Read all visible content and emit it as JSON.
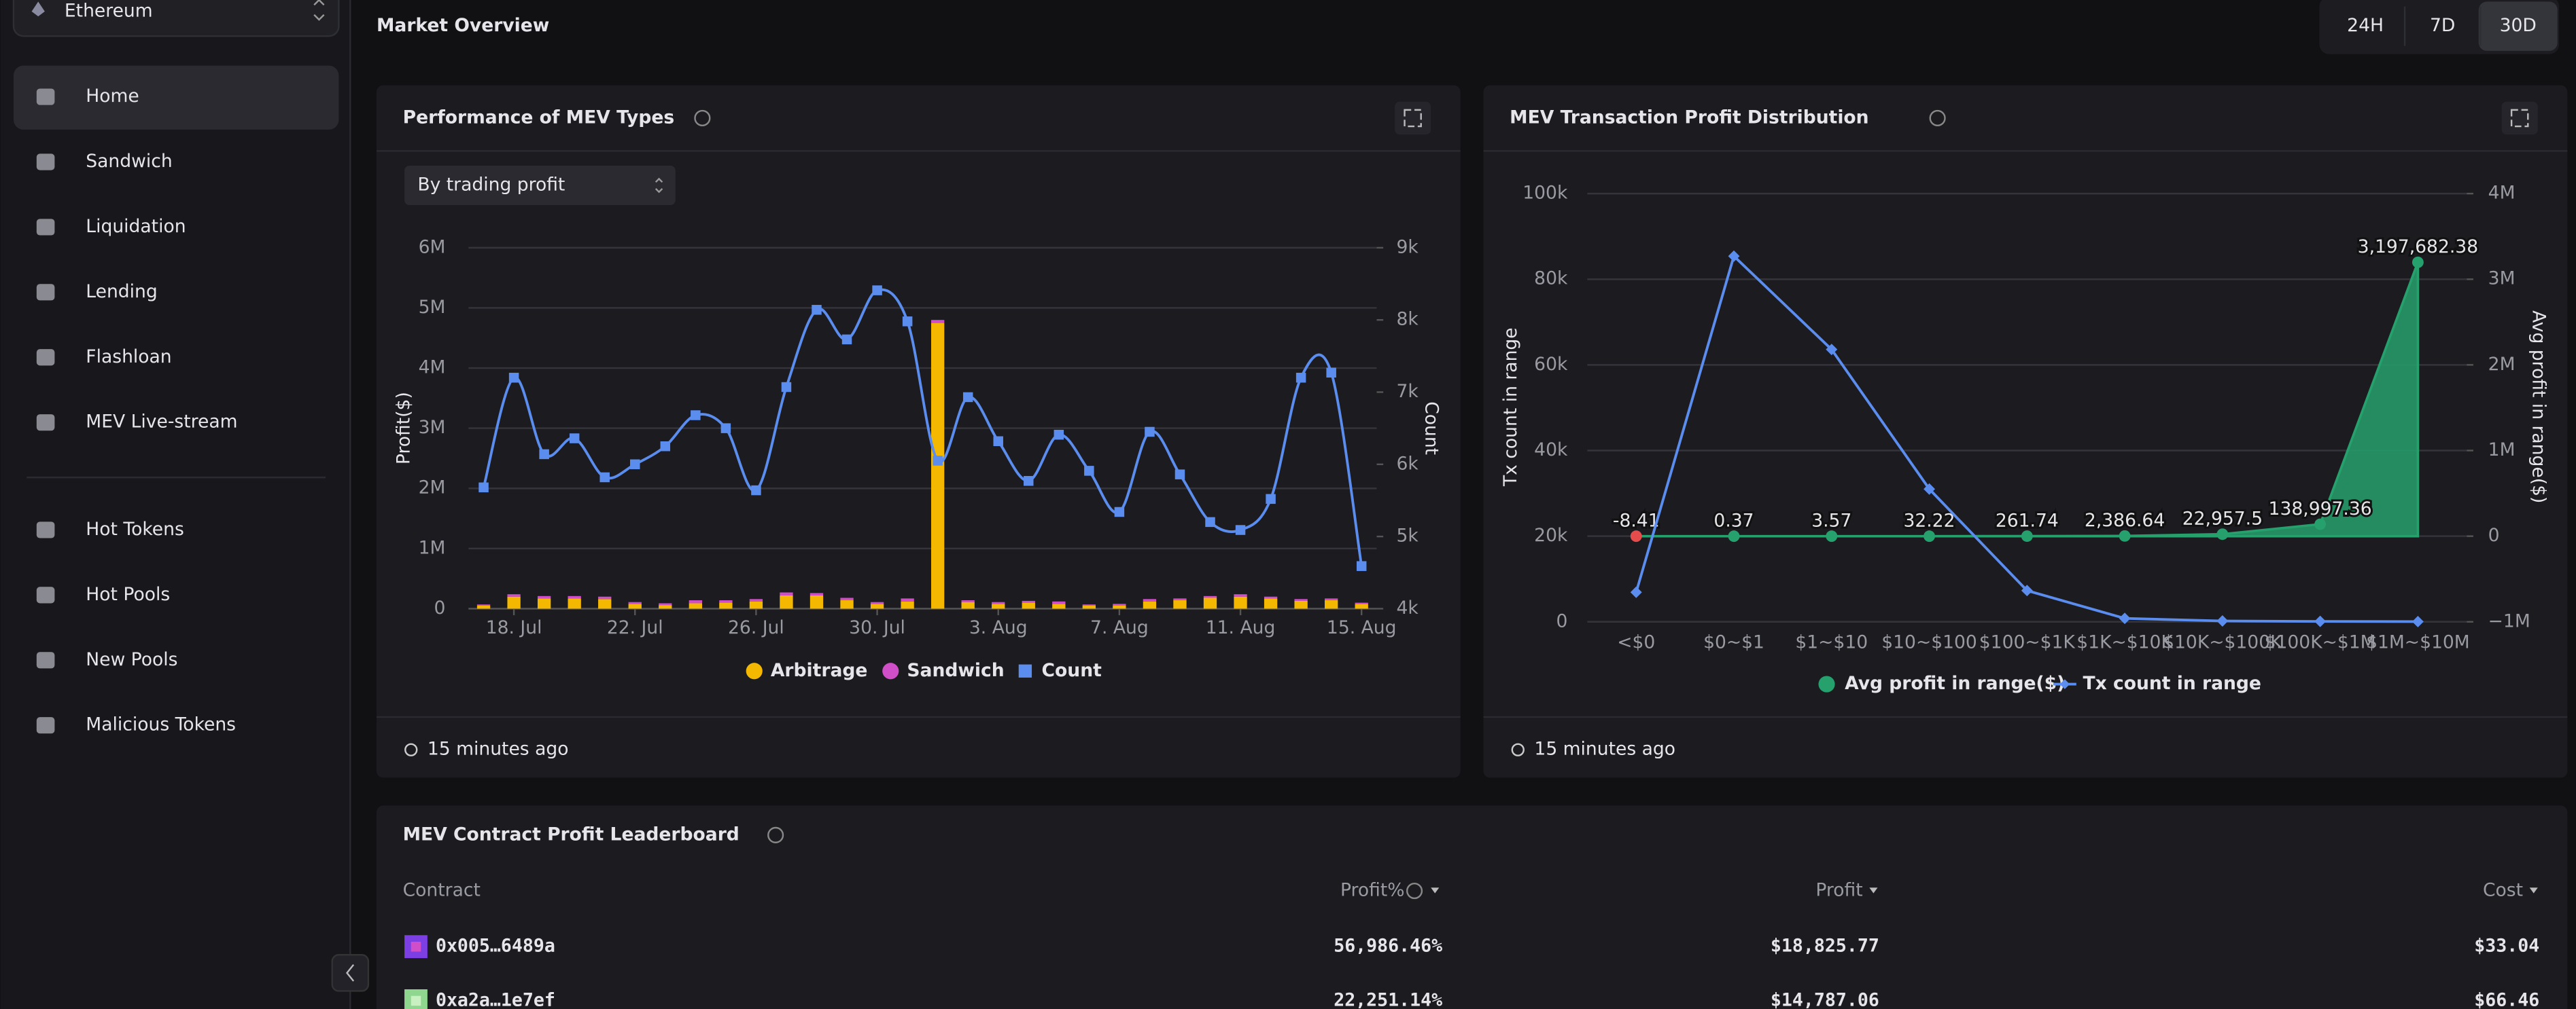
{
  "sidebar": {
    "network": "Ethereum",
    "active": "Home",
    "nav": [
      "Home",
      "Sandwich",
      "Liquidation",
      "Lending",
      "Flashloan",
      "MEV Live-stream"
    ],
    "nav_tools": [
      "Hot Tokens",
      "Hot Pools",
      "New Pools",
      "Malicious Tokens"
    ]
  },
  "header": {
    "title": "Market Overview",
    "ranges": [
      "24H",
      "7D",
      "30D"
    ],
    "active_range": "30D"
  },
  "chart_data": [
    {
      "type": "bar",
      "title": "Performance of MEV Types",
      "selector": "By trading profit",
      "y_label": "Profit($)",
      "y2_label": "Count",
      "footer": "15 minutes ago",
      "stacked": true,
      "categories": [
        null,
        "18. Jul",
        null,
        null,
        null,
        "22. Jul",
        null,
        null,
        null,
        "26. Jul",
        null,
        null,
        null,
        "30. Jul",
        null,
        null,
        null,
        "3. Aug",
        null,
        null,
        null,
        "7. Aug",
        null,
        null,
        null,
        "11. Aug",
        null,
        null,
        null,
        "15. Aug"
      ],
      "series": [
        {
          "name": "Arbitrage",
          "color": "#f5b800",
          "type": "bar",
          "values": [
            50000,
            200000,
            170000,
            170000,
            160000,
            80000,
            60000,
            90000,
            100000,
            120000,
            220000,
            220000,
            140000,
            80000,
            120000,
            4750000,
            110000,
            80000,
            100000,
            80000,
            50000,
            50000,
            120000,
            140000,
            180000,
            200000,
            170000,
            130000,
            140000,
            80000
          ]
        },
        {
          "name": "Sandwich",
          "color": "#d04fc9",
          "type": "bar",
          "values": [
            20000,
            40000,
            40000,
            40000,
            40000,
            30000,
            30000,
            50000,
            40000,
            40000,
            50000,
            40000,
            40000,
            30000,
            50000,
            50000,
            30000,
            30000,
            30000,
            40000,
            20000,
            30000,
            40000,
            30000,
            30000,
            40000,
            30000,
            30000,
            30000,
            20000
          ]
        },
        {
          "name": "Count",
          "color": "#5b8def",
          "type": "line",
          "axis": "y2",
          "values": [
            5680,
            7200,
            6140,
            6360,
            5820,
            6000,
            6250,
            6680,
            6500,
            5640,
            7070,
            8140,
            7730,
            8410,
            7980,
            6050,
            6930,
            6320,
            5770,
            6410,
            5910,
            5340,
            6450,
            5860,
            5200,
            5090,
            5520,
            7200,
            7270,
            4590
          ]
        }
      ],
      "ylim": [
        0,
        6000000
      ],
      "yticks": [
        0,
        {
          "value": 1000000,
          "label": "1M"
        },
        {
          "value": 2000000,
          "label": "2M"
        },
        {
          "value": 3000000,
          "label": "3M"
        },
        {
          "value": 4000000,
          "label": "4M"
        },
        {
          "value": 5000000,
          "label": "5M"
        },
        {
          "value": 6000000,
          "label": "6M"
        }
      ],
      "y2lim": [
        4000,
        9000
      ],
      "y2ticks": [
        {
          "value": 4000,
          "label": "4k"
        },
        {
          "value": 5000,
          "label": "5k"
        },
        {
          "value": 6000,
          "label": "6k"
        },
        {
          "value": 7000,
          "label": "7k"
        },
        {
          "value": 8000,
          "label": "8k"
        },
        {
          "value": 9000,
          "label": "9k"
        }
      ],
      "grid": true
    },
    {
      "type": "area_line",
      "title": "MEV Transaction Profit Distribution",
      "y_label": "Tx count in range",
      "y2_label": "Avg profit in range($)",
      "footer": "15 minutes ago",
      "categories": [
        "<$0",
        "$0~$1",
        "$1~$10",
        "$10~$100",
        "$100~$1K",
        "$1K~$10K",
        "$10K~$100K",
        "$100K~$1M",
        "$1M~$10M"
      ],
      "series": [
        {
          "name": "Avg profit in range($)",
          "color": "#26a06c",
          "negative_color": "#e74c4c",
          "type": "area",
          "axis": "y2",
          "values": [
            -8.41,
            0.37,
            3.57,
            32.22,
            261.74,
            2386.64,
            22957.5,
            138997.36,
            3197682.38
          ],
          "value_labels": [
            "-8.41",
            "0.37",
            "3.57",
            "32.22",
            "261.74",
            "2,386.64",
            "22,957.5",
            "138,997.36",
            "3,197,682.38"
          ]
        },
        {
          "name": "Tx count in range",
          "color": "#5b8def",
          "type": "line",
          "values": [
            6900,
            85400,
            63600,
            31000,
            7300,
            800,
            200,
            100,
            50
          ]
        }
      ],
      "ylim": [
        0,
        100000
      ],
      "yticks": [
        0,
        {
          "value": 20000,
          "label": "20k"
        },
        {
          "value": 40000,
          "label": "40k"
        },
        {
          "value": 60000,
          "label": "60k"
        },
        {
          "value": 80000,
          "label": "80k"
        },
        {
          "value": 100000,
          "label": "100k"
        }
      ],
      "y2lim": [
        -1000000,
        4000000
      ],
      "y2ticks": [
        {
          "value": -1000000,
          "label": "−1M"
        },
        0,
        {
          "value": 1000000,
          "label": "1M"
        },
        {
          "value": 2000000,
          "label": "2M"
        },
        {
          "value": 3000000,
          "label": "3M"
        },
        {
          "value": 4000000,
          "label": "4M"
        }
      ],
      "grid": true
    }
  ],
  "leaderboard": {
    "title": "MEV Contract Profit Leaderboard",
    "columns": [
      "Contract",
      "Profit%",
      "Profit",
      "Cost"
    ],
    "rows": [
      [
        "0x005…6489a",
        "56,986.46%",
        "$18,825.77",
        "$33.04"
      ],
      [
        "0xa2a…1e7ef",
        "22,251.14%",
        "$14,787.06",
        "$66.46"
      ]
    ]
  }
}
